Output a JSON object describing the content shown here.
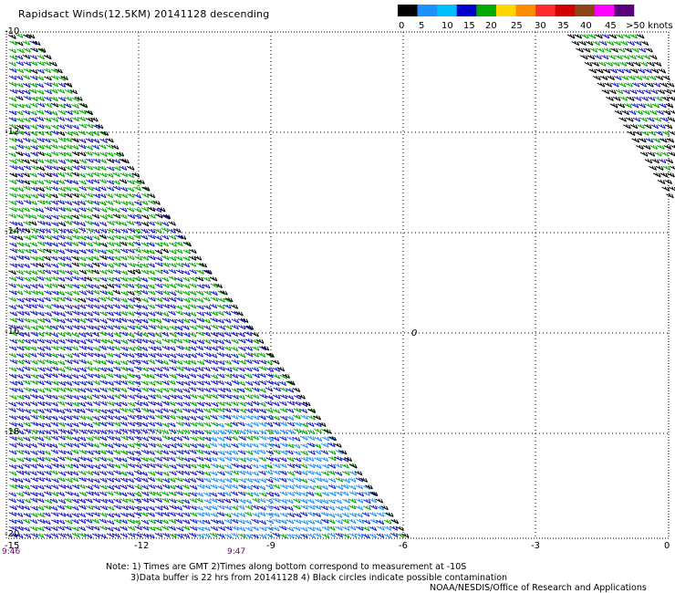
{
  "title": "Rapidsact Winds(12.5KM) 20141128 descending",
  "colorbar": {
    "labels": [
      "0",
      "5",
      "10",
      "15",
      "20",
      "25",
      "30",
      "35",
      "40",
      "45",
      ">50 knots"
    ],
    "colors": [
      "#000000",
      "#1e90ff",
      "#00bfff",
      "#0000cd",
      "#00aa00",
      "#ffd700",
      "#ff8c00",
      "#ff2a2a",
      "#d40000",
      "#8b4513",
      "#ff00ff",
      "#5a007a"
    ]
  },
  "axes": {
    "x_ticks": [
      "-15",
      "-12",
      "-9",
      "-6",
      "-3",
      "0"
    ],
    "y_ticks": [
      "-10",
      "-12",
      "-14",
      "-16",
      "-18",
      "-20"
    ],
    "time_labels": [
      "9:46",
      "9:47"
    ]
  },
  "contamination_marker": "0",
  "notes": {
    "line1": "Note: 1) Times are GMT 2)Times along bottom correspond to measurement at -10S",
    "line2": "3)Data buffer is 22 hrs from 20141128 4) Black circles indicate possible contamination",
    "line3": "NOAA/NESDIS/Office of Research and Applications"
  }
}
